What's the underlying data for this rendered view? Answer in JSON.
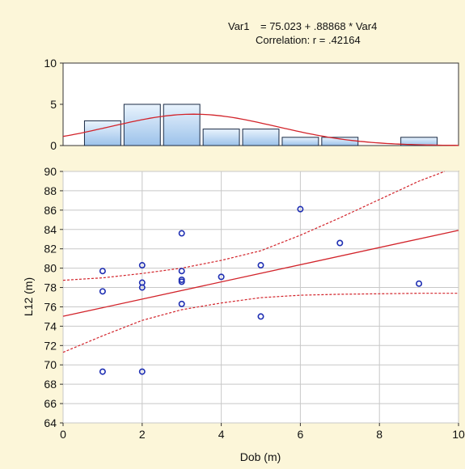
{
  "annotation": {
    "var_name": "Var1",
    "equation": "= 75.023 + .88868 * Var4",
    "correlation": "Correlation: r = .42164"
  },
  "chart_data": [
    {
      "type": "bar",
      "role": "histogram",
      "bins": [
        {
          "x_start": 0.5,
          "x_end": 1.5,
          "count": 3
        },
        {
          "x_start": 1.5,
          "x_end": 2.5,
          "count": 5
        },
        {
          "x_start": 2.5,
          "x_end": 3.5,
          "count": 5
        },
        {
          "x_start": 3.5,
          "x_end": 4.5,
          "count": 2
        },
        {
          "x_start": 4.5,
          "x_end": 5.5,
          "count": 2
        },
        {
          "x_start": 5.5,
          "x_end": 6.5,
          "count": 1
        },
        {
          "x_start": 6.5,
          "x_end": 7.5,
          "count": 1
        },
        {
          "x_start": 7.5,
          "x_end": 8.5,
          "count": 0
        },
        {
          "x_start": 8.5,
          "x_end": 9.5,
          "count": 1
        }
      ],
      "normal_curve": {
        "mean": 3.3,
        "sd": 2.1,
        "n": 20,
        "bin_width": 1
      },
      "ylim": [
        0,
        10
      ],
      "xlim": [
        0,
        10
      ],
      "y_ticks": [
        "0",
        "5",
        "10"
      ],
      "bar_color": "#bcd6f1",
      "curve_color": "#d2232a"
    },
    {
      "type": "scatter",
      "role": "regression",
      "xlabel": "Dob (m)",
      "ylabel": "L12 (m)",
      "xlim": [
        0,
        10
      ],
      "ylim": [
        64,
        90
      ],
      "x_ticks": [
        "0",
        "2",
        "4",
        "6",
        "8",
        "10"
      ],
      "y_ticks": [
        "64",
        "66",
        "68",
        "70",
        "72",
        "74",
        "76",
        "78",
        "80",
        "82",
        "84",
        "86",
        "88",
        "90"
      ],
      "points": [
        {
          "x": 1,
          "y": 79.7
        },
        {
          "x": 1,
          "y": 77.6
        },
        {
          "x": 1,
          "y": 69.3
        },
        {
          "x": 2,
          "y": 80.3
        },
        {
          "x": 2,
          "y": 78.5
        },
        {
          "x": 2,
          "y": 78.0
        },
        {
          "x": 2,
          "y": 69.3
        },
        {
          "x": 3,
          "y": 83.6
        },
        {
          "x": 3,
          "y": 79.7
        },
        {
          "x": 3,
          "y": 78.8
        },
        {
          "x": 3,
          "y": 78.6
        },
        {
          "x": 3,
          "y": 76.3
        },
        {
          "x": 4,
          "y": 79.1
        },
        {
          "x": 5,
          "y": 80.3
        },
        {
          "x": 5,
          "y": 75.0
        },
        {
          "x": 6,
          "y": 86.1
        },
        {
          "x": 7,
          "y": 82.6
        },
        {
          "x": 9,
          "y": 78.4
        }
      ],
      "regression": {
        "intercept": 75.023,
        "slope": 0.88868
      },
      "confidence_band": {
        "upper": [
          [
            0,
            78.75
          ],
          [
            1,
            79.0
          ],
          [
            2,
            79.45
          ],
          [
            3,
            80.0
          ],
          [
            4,
            80.8
          ],
          [
            5,
            81.8
          ],
          [
            6,
            83.4
          ],
          [
            7,
            85.2
          ],
          [
            8,
            87.1
          ],
          [
            9,
            89.0
          ],
          [
            9.65,
            90
          ]
        ],
        "lower": [
          [
            0,
            71.3
          ],
          [
            1,
            73.0
          ],
          [
            2,
            74.6
          ],
          [
            3,
            75.7
          ],
          [
            4,
            76.4
          ],
          [
            5,
            76.95
          ],
          [
            6,
            77.2
          ],
          [
            7,
            77.3
          ],
          [
            8,
            77.35
          ],
          [
            9,
            77.4
          ],
          [
            10,
            77.4
          ]
        ]
      },
      "grid": true,
      "point_color": "#1f2fb3",
      "line_color": "#d2232a"
    }
  ]
}
